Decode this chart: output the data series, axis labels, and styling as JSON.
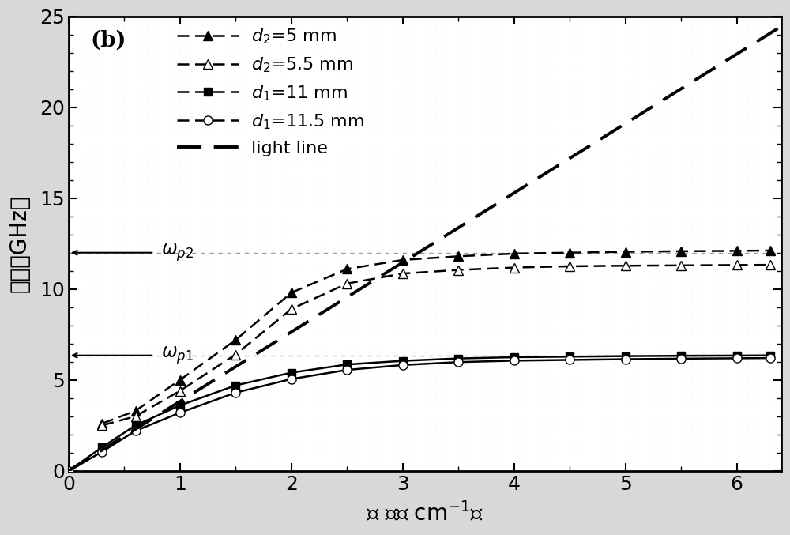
{
  "title": "(b)",
  "xlabel": "波 数（ cm⁻¹）",
  "ylabel": "频率（GHz）",
  "xlim": [
    0,
    6.4
  ],
  "ylim": [
    0,
    25
  ],
  "xticks": [
    0,
    1,
    2,
    3,
    4,
    5,
    6
  ],
  "yticks": [
    0,
    5,
    10,
    15,
    20,
    25
  ],
  "omega_p2": 12.0,
  "omega_p1": 6.35,
  "light_line_slope": 3.82,
  "series_d2_5mm": {
    "x": [
      0.3,
      0.6,
      1.0,
      1.5,
      2.0,
      2.5,
      3.0,
      3.5,
      4.0,
      4.5,
      5.0,
      5.5,
      6.0,
      6.3
    ],
    "y": [
      2.6,
      3.3,
      5.0,
      7.2,
      9.8,
      11.1,
      11.6,
      11.8,
      11.95,
      12.0,
      12.05,
      12.08,
      12.1,
      12.12
    ],
    "label": "$d_2\\!=\\!5\\,\\mathrm{mm}$",
    "marker": "^",
    "filled": true,
    "linestyle": "--"
  },
  "series_d2_5p5mm": {
    "x": [
      0.3,
      0.6,
      1.0,
      1.5,
      2.0,
      2.5,
      3.0,
      3.5,
      4.0,
      4.5,
      5.0,
      5.5,
      6.0,
      6.3
    ],
    "y": [
      2.5,
      3.0,
      4.4,
      6.4,
      8.9,
      10.3,
      10.85,
      11.05,
      11.18,
      11.25,
      11.28,
      11.3,
      11.32,
      11.33
    ],
    "label": "$d_2\\!=\\!5.5\\,\\mathrm{mm}$",
    "marker": "^",
    "filled": false,
    "linestyle": "--"
  },
  "series_d1_11mm": {
    "x": [
      0.0,
      0.3,
      0.6,
      1.0,
      1.5,
      2.0,
      2.5,
      3.0,
      3.5,
      4.0,
      4.5,
      5.0,
      5.5,
      6.0,
      6.3
    ],
    "y": [
      0.0,
      1.3,
      2.5,
      3.6,
      4.7,
      5.4,
      5.85,
      6.05,
      6.18,
      6.25,
      6.28,
      6.31,
      6.33,
      6.34,
      6.35
    ],
    "label": "$d_1\\!=\\!11\\,\\mathrm{mm}$",
    "marker": "s",
    "filled": true,
    "linestyle": "-"
  },
  "series_d1_11p5mm": {
    "x": [
      0.0,
      0.3,
      0.6,
      1.0,
      1.5,
      2.0,
      2.5,
      3.0,
      3.5,
      4.0,
      4.5,
      5.0,
      5.5,
      6.0,
      6.3
    ],
    "y": [
      0.0,
      1.05,
      2.2,
      3.2,
      4.3,
      5.05,
      5.55,
      5.82,
      5.98,
      6.06,
      6.1,
      6.14,
      6.17,
      6.19,
      6.2
    ],
    "label": "$d_1\\!=\\!11.5\\,\\mathrm{mm}$",
    "marker": "o",
    "filled": false,
    "linestyle": "-"
  },
  "background_color": "#ffffff",
  "fig_facecolor": "#d8d8d8",
  "dotted_line_color": "#888888",
  "label_fontsize": 20,
  "tick_fontsize": 18,
  "legend_fontsize": 16,
  "linewidth": 1.8,
  "light_linewidth": 2.8
}
